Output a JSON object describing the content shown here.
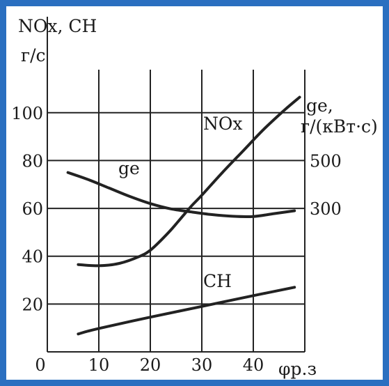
{
  "chart_data": {
    "type": "line",
    "xlabel": "φр.з",
    "ylabel_left": [
      "NOx, CH",
      "г/с"
    ],
    "ylabel_right": [
      "gе,",
      "г/(кВт·с)"
    ],
    "x_ticks": [
      "0",
      "10",
      "20",
      "30",
      "40"
    ],
    "y_ticks_left": [
      "20",
      "40",
      "60",
      "80",
      "100"
    ],
    "y_ticks_right": [
      "500",
      "300"
    ],
    "xlim": [
      0,
      50
    ],
    "ylim": [
      0,
      118
    ],
    "grid": true,
    "series": [
      {
        "name": "NOx",
        "x": [
          6,
          10,
          14,
          18,
          20,
          22,
          24,
          26,
          28,
          30,
          34,
          38,
          42,
          46,
          49
        ],
        "y": [
          36.5,
          36,
          37,
          40,
          42.5,
          46.5,
          51,
          56,
          61,
          65.5,
          75,
          84,
          93,
          101,
          106.5
        ]
      },
      {
        "name": "CH",
        "x": [
          6,
          10,
          20,
          30,
          40,
          48
        ],
        "y": [
          7.5,
          9.8,
          14.5,
          19,
          23.5,
          27
        ]
      },
      {
        "name": "gе",
        "x": [
          4,
          8,
          12,
          16,
          20,
          24,
          28,
          32,
          36,
          40,
          44,
          48
        ],
        "y": [
          75,
          72,
          68.5,
          65,
          62,
          59.8,
          58.5,
          57.4,
          56.7,
          56.6,
          57.8,
          59
        ]
      }
    ]
  }
}
